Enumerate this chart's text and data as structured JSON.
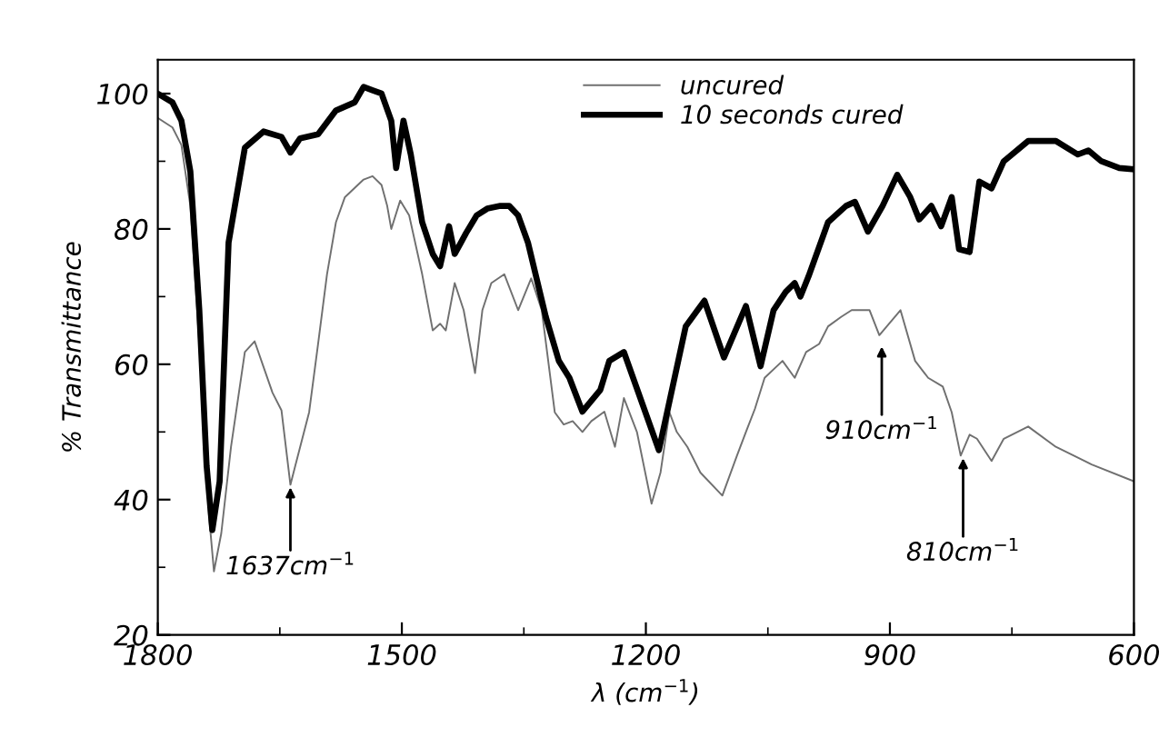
{
  "chart_data": {
    "type": "line",
    "xlabel": "λ (cm$^{−1}$)",
    "ylabel": "% Transmittance",
    "xlim": [
      1800,
      600
    ],
    "xticks": [
      1800,
      1500,
      1200,
      900,
      600
    ],
    "ylim": [
      20,
      105
    ],
    "yticks": [
      20,
      40,
      60,
      80,
      100
    ],
    "legend": "top",
    "grid": false,
    "marker": "none",
    "series": [
      {
        "name": "uncured",
        "color": "#707070",
        "line_style": "solid",
        "x": [
          1800,
          1782,
          1771,
          1760,
          1749,
          1737,
          1731,
          1722,
          1710,
          1693,
          1681,
          1670,
          1659,
          1648,
          1637,
          1625,
          1614,
          1603,
          1592,
          1581,
          1570,
          1547,
          1536,
          1525,
          1518,
          1513,
          1502,
          1491,
          1475,
          1462,
          1453,
          1446,
          1435,
          1424,
          1410,
          1401,
          1390,
          1374,
          1357,
          1341,
          1328,
          1312,
          1301,
          1290,
          1278,
          1267,
          1251,
          1238,
          1227,
          1211,
          1193,
          1182,
          1171,
          1162,
          1149,
          1133,
          1106,
          1088,
          1077,
          1066,
          1054,
          1032,
          1017,
          1003,
          987,
          976,
          960,
          947,
          925,
          913,
          887,
          869,
          853,
          835,
          824,
          813,
          802,
          793,
          775,
          760,
          730,
          696,
          652,
          600
        ],
        "values": [
          96.4,
          95,
          92.4,
          83.4,
          63,
          37.6,
          29.4,
          35,
          47.8,
          61.8,
          63.4,
          59.6,
          55.8,
          53.2,
          42.2,
          47.8,
          52.9,
          63,
          73.3,
          81,
          84.7,
          87.3,
          87.8,
          86.5,
          83.4,
          80,
          84.2,
          82,
          73.3,
          65,
          66,
          65,
          72,
          68,
          58.7,
          68,
          72,
          73.3,
          68,
          72.7,
          68,
          52.9,
          51.1,
          51.6,
          50,
          51.6,
          53,
          47.8,
          55,
          50,
          39.4,
          44,
          52.9,
          50,
          47.8,
          44,
          40.6,
          46.5,
          50,
          53.4,
          58,
          60.5,
          58,
          61.8,
          63,
          65.6,
          67,
          68,
          68,
          64.3,
          68,
          60.5,
          58,
          56.7,
          52.9,
          46.5,
          49.6,
          49,
          45.7,
          49,
          50.8,
          47.8,
          45.2,
          42.7
        ]
      },
      {
        "name": "10 seconds cured",
        "color": "#000000",
        "line_style": "solid",
        "x": [
          1800,
          1782,
          1771,
          1760,
          1749,
          1740,
          1733,
          1724,
          1713,
          1693,
          1670,
          1648,
          1637,
          1625,
          1603,
          1581,
          1558,
          1547,
          1536,
          1525,
          1513,
          1507,
          1498,
          1489,
          1475,
          1462,
          1453,
          1442,
          1435,
          1421,
          1408,
          1395,
          1379,
          1368,
          1357,
          1345,
          1323,
          1307,
          1294,
          1278,
          1256,
          1245,
          1227,
          1184,
          1151,
          1128,
          1104,
          1077,
          1059,
          1043,
          1028,
          1017,
          1010,
          1000,
          976,
          954,
          943,
          927,
          909,
          891,
          875,
          864,
          849,
          837,
          824,
          815,
          802,
          790,
          775,
          760,
          730,
          696,
          669,
          656,
          640,
          618,
          600
        ],
        "values": [
          100,
          98.7,
          96,
          88.5,
          68,
          45,
          35.5,
          42.7,
          78,
          92,
          94.4,
          93.6,
          91.3,
          93.4,
          94,
          97.5,
          98.7,
          101,
          100.5,
          100,
          96,
          89,
          96,
          91,
          81,
          76.3,
          74.5,
          80.4,
          76.3,
          79.4,
          82,
          83,
          83.4,
          83.4,
          82,
          78,
          67,
          60.5,
          58,
          53,
          56.2,
          60.5,
          61.8,
          47.3,
          65.6,
          69.4,
          61,
          68.6,
          59.7,
          68,
          70.7,
          72,
          70,
          73,
          81,
          83.4,
          84,
          79.6,
          83.4,
          88,
          84.7,
          81.4,
          83.4,
          80.4,
          84.7,
          77,
          76.6,
          87,
          86,
          90,
          93,
          93,
          91,
          91.6,
          90,
          89,
          88.8
        ]
      }
    ],
    "annotations": [
      {
        "text": "1637cm$^{−1}$",
        "x": 1637,
        "y": 42.2
      },
      {
        "text": "910cm$^{−1}$",
        "x": 910,
        "y": 63
      },
      {
        "text": "810cm$^{−1}$",
        "x": 810,
        "y": 46.5
      }
    ]
  }
}
